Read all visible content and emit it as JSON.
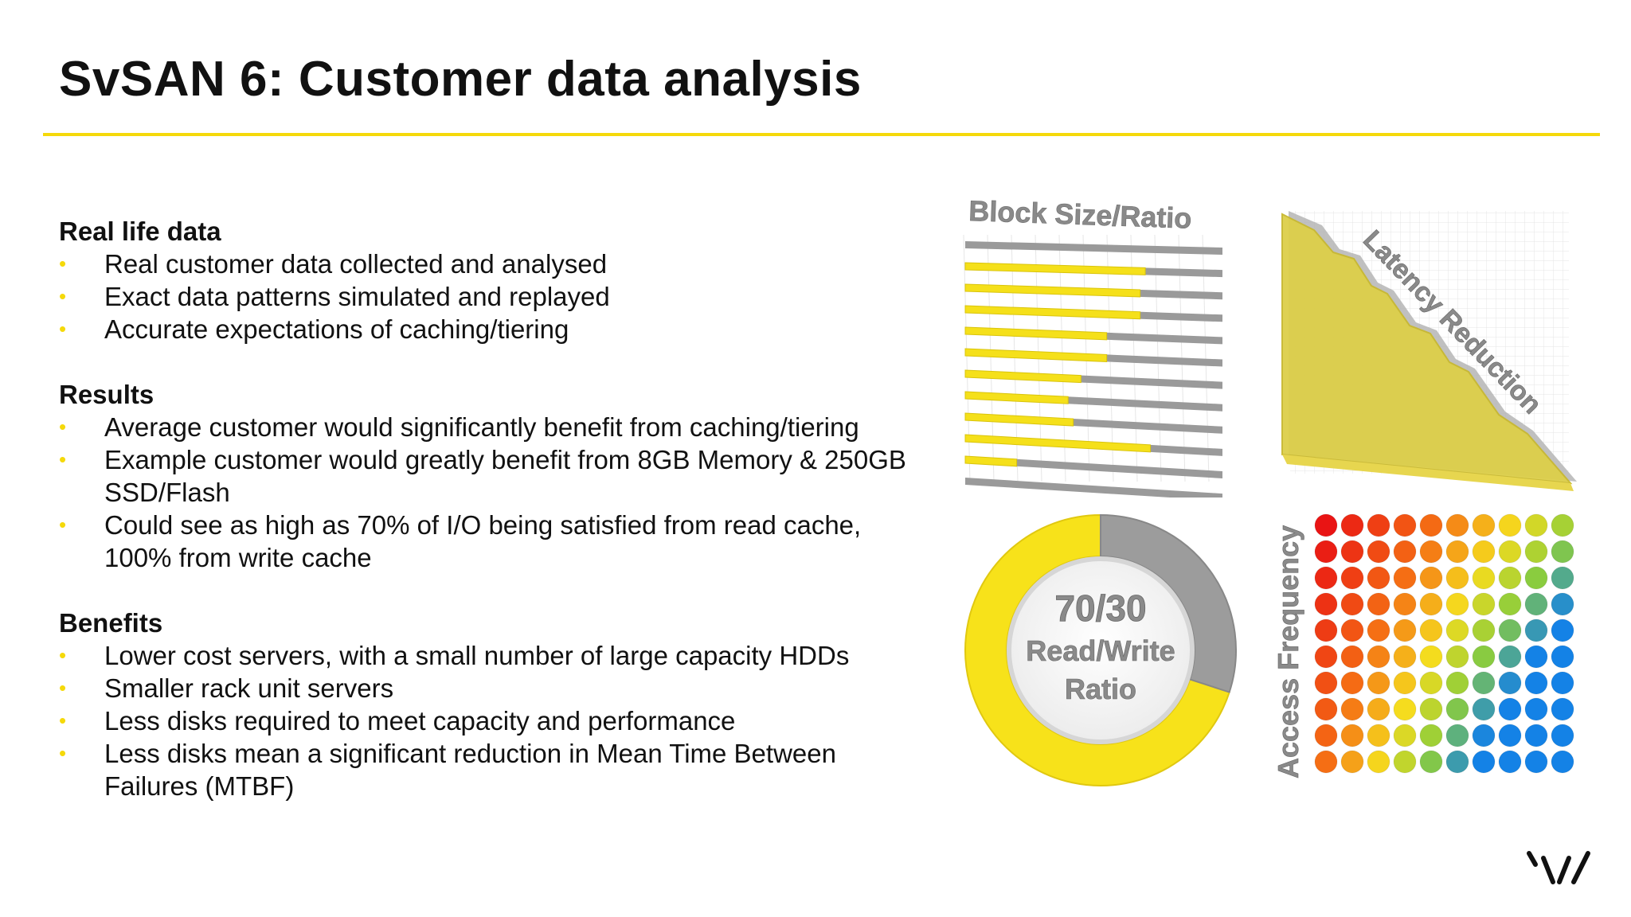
{
  "title": "SvSAN 6: Customer data analysis",
  "accent_color": "#f5d90a",
  "sections": [
    {
      "heading": "Real life data",
      "bullets": [
        "Real customer data collected and analysed",
        "Exact data patterns simulated and replayed",
        "Accurate expectations of caching/tiering"
      ]
    },
    {
      "heading": "Results",
      "bullets": [
        "Average customer would significantly benefit from caching/tiering",
        "Example customer would greatly benefit from 8GB Memory & 250GB SSD/Flash",
        "Could see as high as 70% of I/O being satisfied from read cache, 100% from write cache"
      ]
    },
    {
      "heading": "Benefits",
      "bullets": [
        "Lower cost servers, with a small number of large capacity HDDs",
        "Smaller rack unit servers",
        "Less disks required to meet capacity and performance",
        "Less disks mean a significant reduction in Mean Time Between Failures (MTBF)"
      ]
    }
  ],
  "bullet_glyph": "•",
  "graphics": {
    "block_size": {
      "label": "Block Size/Ratio",
      "ratios": [
        0.0,
        0.7,
        0.68,
        0.68,
        0.55,
        0.55,
        0.45,
        0.4,
        0.42,
        0.72,
        0.2,
        0.0
      ]
    },
    "latency": {
      "label": "Latency Reduction"
    },
    "donut": {
      "line1": "70/30",
      "line2": "Read/Write",
      "line3": "Ratio",
      "read_percent": 70
    },
    "access": {
      "label": "Access Frequency"
    }
  },
  "logo": {
    "icon": "stripes-logo-icon"
  }
}
